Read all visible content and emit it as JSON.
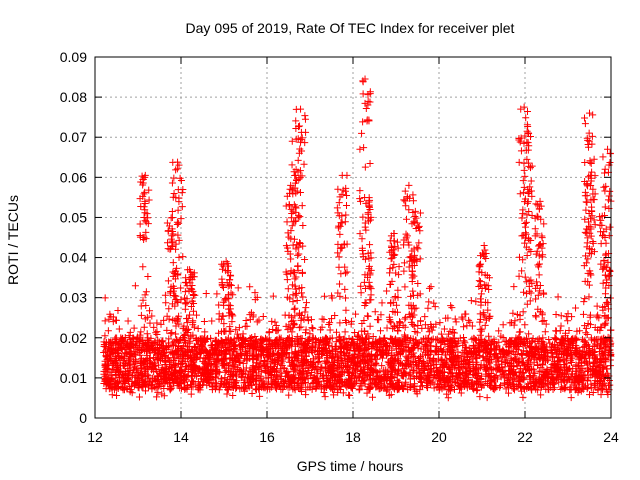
{
  "chart_data": {
    "type": "scatter",
    "title": "Day 095 of 2019, Rate Of TEC Index for receiver plet",
    "xlabel": "GPS time / hours",
    "ylabel": "ROTI / TECUs",
    "xlim": [
      12,
      24
    ],
    "ylim": [
      0,
      0.09
    ],
    "xticks": [
      12,
      14,
      16,
      18,
      20,
      22,
      24
    ],
    "xtick_labels": [
      "12",
      "14",
      "16",
      "18",
      "20",
      "22",
      "24"
    ],
    "yticks": [
      0,
      0.01,
      0.02,
      0.03,
      0.04,
      0.05,
      0.06,
      0.07,
      0.08,
      0.09
    ],
    "ytick_labels": [
      "0",
      "0.01",
      "0.02",
      "0.03",
      "0.04",
      "0.05",
      "0.06",
      "0.07",
      "0.08",
      "0.09"
    ],
    "grid": true,
    "marker": "+",
    "series_color": "#ff0000",
    "series": [
      {
        "name": "ROTI",
        "peaks": [
          {
            "x": 13.17,
            "y": 0.0605
          },
          {
            "x": 13.8,
            "y": 0.05
          },
          {
            "x": 13.92,
            "y": 0.0638
          },
          {
            "x": 14.2,
            "y": 0.037
          },
          {
            "x": 15.05,
            "y": 0.039
          },
          {
            "x": 16.55,
            "y": 0.058
          },
          {
            "x": 16.68,
            "y": 0.0695
          },
          {
            "x": 16.78,
            "y": 0.077
          },
          {
            "x": 17.75,
            "y": 0.0605
          },
          {
            "x": 18.28,
            "y": 0.0845
          },
          {
            "x": 18.3,
            "y": 0.0535
          },
          {
            "x": 18.95,
            "y": 0.046
          },
          {
            "x": 19.3,
            "y": 0.058
          },
          {
            "x": 19.45,
            "y": 0.0515
          },
          {
            "x": 21.05,
            "y": 0.043
          },
          {
            "x": 21.98,
            "y": 0.0775
          },
          {
            "x": 22.05,
            "y": 0.0715
          },
          {
            "x": 22.35,
            "y": 0.054
          },
          {
            "x": 23.5,
            "y": 0.076
          },
          {
            "x": 23.52,
            "y": 0.0605
          },
          {
            "x": 23.92,
            "y": 0.067
          },
          {
            "x": 23.85,
            "y": 0.0505
          }
        ]
      }
    ]
  }
}
